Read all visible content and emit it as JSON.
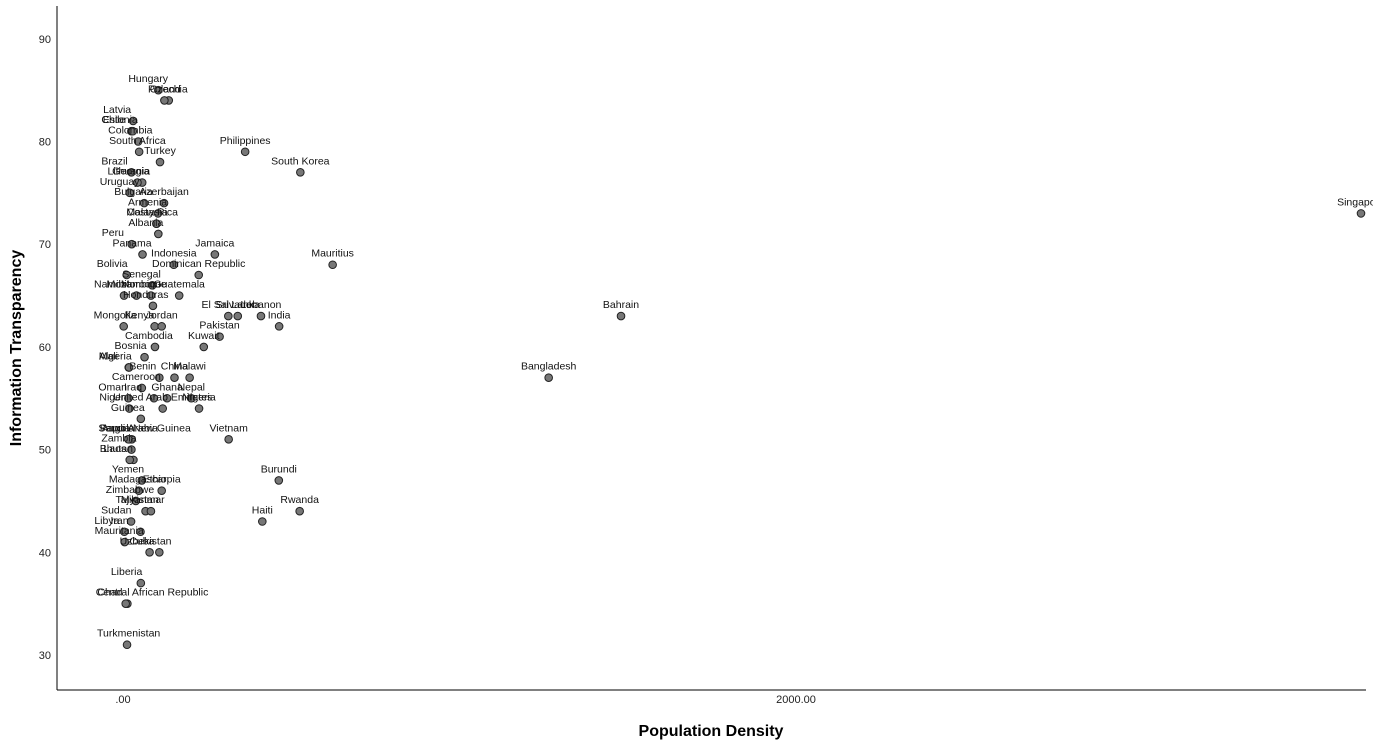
{
  "chart_data": {
    "type": "scatter",
    "title": "",
    "xlabel": "Population Density",
    "ylabel": "Information Transparency",
    "xlim": [
      -190,
      7350
    ],
    "ylim": [
      27,
      93.5
    ],
    "x_ticks": [
      0,
      2000,
      4000,
      6000
    ],
    "x_tick_labels": [
      ".00",
      "2000.00",
      "4000.00",
      "6000.00"
    ],
    "y_ticks": [
      30,
      40,
      50,
      60,
      70,
      80,
      90
    ],
    "y_tick_labels": [
      "30",
      "40",
      "50",
      "60",
      "70",
      "80",
      "90"
    ],
    "grid": false,
    "legend": "none",
    "colors": {
      "marker_fill": "#777777",
      "marker_stroke": "#222222"
    },
    "points": [
      {
        "label": "Hungary",
        "x": 105,
        "y": 85
      },
      {
        "label": "Czechia",
        "x": 136,
        "y": 84
      },
      {
        "label": "Poland",
        "x": 123,
        "y": 84
      },
      {
        "label": "Latvia",
        "x": 30,
        "y": 82
      },
      {
        "label": "Chile",
        "x": 25,
        "y": 81
      },
      {
        "label": "Estonia",
        "x": 29,
        "y": 81
      },
      {
        "label": "Philippines",
        "x": 363,
        "y": 79
      },
      {
        "label": "South Africa",
        "x": 48,
        "y": 79
      },
      {
        "label": "Colombia",
        "x": 45,
        "y": 80
      },
      {
        "label": "South Korea",
        "x": 527,
        "y": 77
      },
      {
        "label": "Turkey",
        "x": 110,
        "y": 78
      },
      {
        "label": "Brazil",
        "x": 25,
        "y": 77
      },
      {
        "label": "Georgia",
        "x": 57,
        "y": 76
      },
      {
        "label": "Lithuania",
        "x": 43,
        "y": 76
      },
      {
        "label": "Uruguay",
        "x": 20,
        "y": 75
      },
      {
        "label": "Azerbaijan",
        "x": 122,
        "y": 74
      },
      {
        "label": "Bulgaria",
        "x": 63,
        "y": 74
      },
      {
        "label": "Armenia",
        "x": 104,
        "y": 73
      },
      {
        "label": "Costa Rica",
        "x": 100,
        "y": 72
      },
      {
        "label": "Malaysia",
        "x": 99,
        "y": 72
      },
      {
        "label": "Albania",
        "x": 105,
        "y": 71
      },
      {
        "label": "Jamaica",
        "x": 273,
        "y": 69
      },
      {
        "label": "Mauritius",
        "x": 623,
        "y": 68
      },
      {
        "label": "Peru",
        "x": 26,
        "y": 70
      },
      {
        "label": "Panama",
        "x": 58,
        "y": 69
      },
      {
        "label": "Indonesia",
        "x": 151,
        "y": 68
      },
      {
        "label": "Bolivia",
        "x": 11,
        "y": 67
      },
      {
        "label": "Dominican Republic",
        "x": 225,
        "y": 67
      },
      {
        "label": "Senegal",
        "x": 87,
        "y": 66
      },
      {
        "label": "Morocco",
        "x": 83,
        "y": 65
      },
      {
        "label": "Guatemala",
        "x": 167,
        "y": 65
      },
      {
        "label": "Namibia",
        "x": 3,
        "y": 65
      },
      {
        "label": "Honduras",
        "x": 89,
        "y": 64
      },
      {
        "label": "Mozambique",
        "x": 40,
        "y": 65
      },
      {
        "label": "El Salvador",
        "x": 313,
        "y": 63
      },
      {
        "label": "India",
        "x": 464,
        "y": 62
      },
      {
        "label": "Kenya",
        "x": 94,
        "y": 62
      },
      {
        "label": "Jordan",
        "x": 115,
        "y": 62
      },
      {
        "label": "Sri Lanka",
        "x": 341,
        "y": 63
      },
      {
        "label": "Mongolia",
        "x": 2,
        "y": 62
      },
      {
        "label": "Lebanon",
        "x": 410,
        "y": 63
      },
      {
        "label": "Pakistan",
        "x": 287,
        "y": 61
      },
      {
        "label": "Cambodia",
        "x": 95,
        "y": 60
      },
      {
        "label": "Bosnia",
        "x": 64,
        "y": 59
      },
      {
        "label": "Kuwait",
        "x": 240,
        "y": 60
      },
      {
        "label": "Mali",
        "x": 17,
        "y": 58
      },
      {
        "label": "Bangladesh",
        "x": 1265,
        "y": 57
      },
      {
        "label": "Algeria",
        "x": 18,
        "y": 58
      },
      {
        "label": "Benin",
        "x": 108,
        "y": 57
      },
      {
        "label": "China",
        "x": 153,
        "y": 57
      },
      {
        "label": "Malawi",
        "x": 198,
        "y": 57
      },
      {
        "label": "Nepal",
        "x": 203,
        "y": 55
      },
      {
        "label": "Iraq",
        "x": 92,
        "y": 55
      },
      {
        "label": "Cameroon",
        "x": 56,
        "y": 56
      },
      {
        "label": "Ghana",
        "x": 131,
        "y": 55
      },
      {
        "label": "Oman",
        "x": 16,
        "y": 55
      },
      {
        "label": "United Arab Emirates",
        "x": 118,
        "y": 54
      },
      {
        "label": "Nigeria",
        "x": 226,
        "y": 54
      },
      {
        "label": "Niger",
        "x": 19,
        "y": 54
      },
      {
        "label": "Papua New Guinea",
        "x": 20,
        "y": 51
      },
      {
        "label": "Guinea",
        "x": 53,
        "y": 53
      },
      {
        "label": "Angola",
        "x": 26,
        "y": 51
      },
      {
        "label": "Saudi Arabia",
        "x": 16,
        "y": 51
      },
      {
        "label": "Zambia",
        "x": 25,
        "y": 50
      },
      {
        "label": "Vietnam",
        "x": 314,
        "y": 51
      },
      {
        "label": "Laos",
        "x": 31,
        "y": 49
      },
      {
        "label": "Bhutan",
        "x": 20,
        "y": 49
      },
      {
        "label": "Yemen",
        "x": 56,
        "y": 47
      },
      {
        "label": "Burundi",
        "x": 463,
        "y": 47
      },
      {
        "label": "Madagascar",
        "x": 47,
        "y": 46
      },
      {
        "label": "Ethiopia",
        "x": 115,
        "y": 46
      },
      {
        "label": "Tajikistan",
        "x": 67,
        "y": 44
      },
      {
        "label": "Rwanda",
        "x": 525,
        "y": 44
      },
      {
        "label": "Zimbabwe",
        "x": 38,
        "y": 45
      },
      {
        "label": "Myanmar",
        "x": 83,
        "y": 44
      },
      {
        "label": "Sudan",
        "x": 24,
        "y": 43
      },
      {
        "label": "Libya",
        "x": 4,
        "y": 42
      },
      {
        "label": "Iran",
        "x": 52,
        "y": 42
      },
      {
        "label": "Haiti",
        "x": 414,
        "y": 43
      },
      {
        "label": "Mauritania",
        "x": 5,
        "y": 41
      },
      {
        "label": "Cuba",
        "x": 108,
        "y": 40
      },
      {
        "label": "Uzbekistan",
        "x": 79,
        "y": 40
      },
      {
        "label": "Liberia",
        "x": 53,
        "y": 37
      },
      {
        "label": "Chad",
        "x": 13,
        "y": 35
      },
      {
        "label": "Central African Republic",
        "x": 8,
        "y": 35
      },
      {
        "label": "Turkmenistan",
        "x": 12,
        "y": 31
      },
      {
        "label": "Bahrain",
        "x": 1480,
        "y": 63
      },
      {
        "label": "Singapore",
        "x": 7480,
        "y": 73
      }
    ]
  }
}
